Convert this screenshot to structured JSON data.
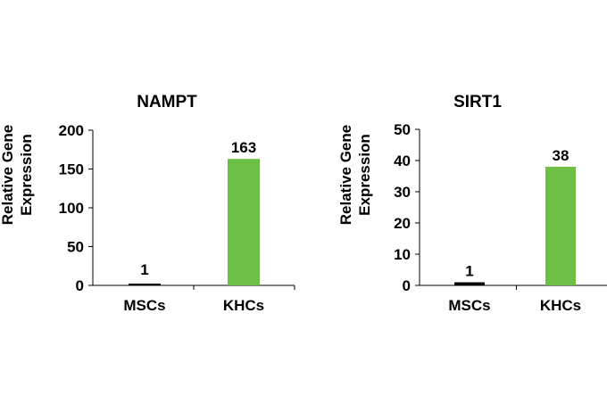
{
  "chart_data": [
    {
      "type": "bar",
      "title": "NAMPT",
      "ylabel": [
        "Relative Gene",
        "Expression"
      ],
      "xlabel": "",
      "categories": [
        "MSCs",
        "KHCs"
      ],
      "values": [
        1,
        163
      ],
      "data_labels": [
        "1",
        "163"
      ],
      "bar_colors": [
        "#000000",
        "#6dbf45"
      ],
      "ylim": [
        0,
        200
      ],
      "yticks": [
        0,
        50,
        100,
        150,
        200
      ],
      "grid": false
    },
    {
      "type": "bar",
      "title": "SIRT1",
      "ylabel": [
        "Relative Gene",
        "Expression"
      ],
      "xlabel": "",
      "categories": [
        "MSCs",
        "KHCs"
      ],
      "values": [
        1,
        38
      ],
      "data_labels": [
        "1",
        "38"
      ],
      "bar_colors": [
        "#000000",
        "#6dbf45"
      ],
      "ylim": [
        0,
        50
      ],
      "yticks": [
        0,
        10,
        20,
        30,
        40,
        50
      ],
      "grid": false
    }
  ]
}
